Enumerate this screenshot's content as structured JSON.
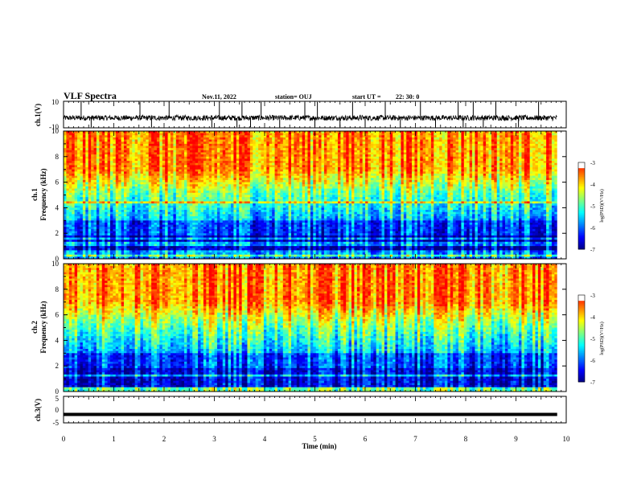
{
  "header": {
    "title": "VLF Spectra",
    "date": "Nov.11, 2022",
    "station": "station= OUJ",
    "start_label": "start UT =",
    "start_time": "22: 30: 0"
  },
  "chart_data": [
    {
      "type": "line",
      "panel": "ch1-waveform",
      "ylabel": "ch.1(V)",
      "ylim": [
        -10,
        10
      ],
      "yticks": [
        "10",
        "-10"
      ],
      "xlim": [
        0,
        10
      ],
      "baseline": -2.5,
      "band": [
        -4.5,
        -0.5
      ],
      "spike_times_min": [
        0.35,
        0.55,
        1.52,
        1.75,
        2.1,
        2.95,
        3.1,
        3.45,
        3.55,
        3.72,
        3.93,
        4.3,
        4.8,
        5.0,
        5.05,
        5.5,
        5.75,
        6.0,
        6.4,
        6.7,
        7.1,
        7.4,
        7.85,
        7.95,
        8.15,
        8.35,
        8.6,
        9.05,
        9.45
      ]
    },
    {
      "type": "heatmap",
      "panel": "ch1-spectrogram",
      "ylabel": "ch.1",
      "ylabel2": "Frequency (kHz)",
      "ylim": [
        0,
        10
      ],
      "xlim": [
        0,
        9.82
      ],
      "yticks": [
        "0",
        "2",
        "4",
        "6",
        "8",
        "10"
      ],
      "colorbar": {
        "label": "log(PSD)(V²/Hz)",
        "range": [
          -7,
          -3
        ],
        "ticks": [
          "-3",
          "-4",
          "-5",
          "-6",
          "-7"
        ]
      }
    },
    {
      "type": "heatmap",
      "panel": "ch2-spectrogram",
      "ylabel": "ch.2",
      "ylabel2": "Frequency (kHz)",
      "ylim": [
        0,
        10
      ],
      "xlim": [
        0,
        9.82
      ],
      "yticks": [
        "0",
        "2",
        "4",
        "6",
        "8",
        "10"
      ],
      "colorbar": {
        "label": "log(PSD)(V²/Hz)",
        "range": [
          -7,
          -3
        ],
        "ticks": [
          "-3",
          "-4",
          "-5",
          "-6",
          "-7"
        ]
      }
    },
    {
      "type": "line",
      "panel": "ch3-waveform",
      "ylabel": "ch.3(V)",
      "ylim": [
        -5,
        5
      ],
      "yticks": [
        "5",
        "0",
        "-5"
      ],
      "xlim": [
        0,
        10
      ],
      "value": -1.8
    }
  ],
  "xaxis": {
    "label": "Time (min)",
    "ticks": [
      "0",
      "1",
      "2",
      "3",
      "4",
      "5",
      "6",
      "7",
      "8",
      "9",
      "10"
    ]
  },
  "colors": {
    "colormap": [
      "#00007f",
      "#0000ff",
      "#0080ff",
      "#00ffff",
      "#80ff80",
      "#ffff00",
      "#ff8000",
      "#ff0000",
      "#ffffff"
    ]
  }
}
